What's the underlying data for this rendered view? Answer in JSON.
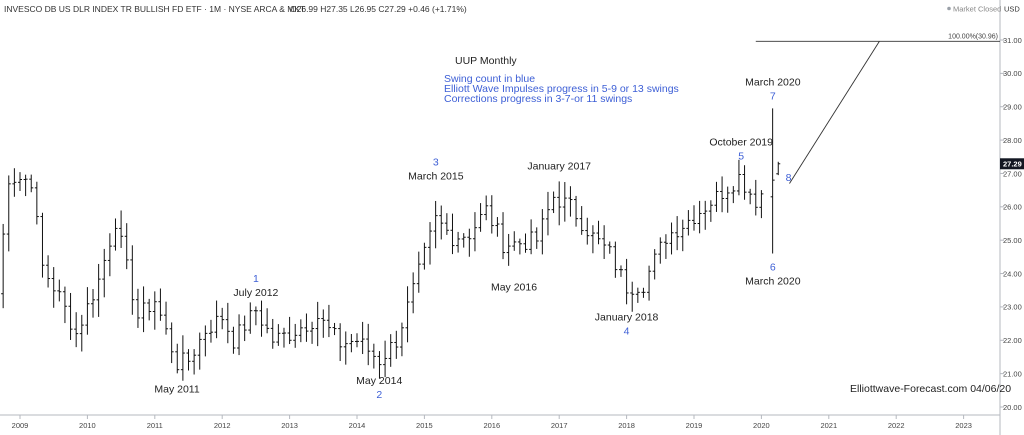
{
  "header": {
    "symbol_line": "INVESCO DB US DLR INDEX TR BULLISH FD ETF · 1M · NYSE ARCA & MKT",
    "ohlc": "O26.99 H27.35 L26.95 C27.29 +0.46 (+1.71%)",
    "market_status": "Market Closed",
    "currency": "USD"
  },
  "colors": {
    "bars": "#111111",
    "blue_text": "#3d5fd6",
    "price_tag": "#131722"
  },
  "notes": {
    "title": "UUP Monthly",
    "line1": "Swing count in blue",
    "line2": "Elliott Wave Impulses progress in 5-9 or 13 swings",
    "line3": "Corrections progress in 3-7-or 11 swings"
  },
  "annotations": [
    {
      "id": "may2011",
      "text": "May 2011",
      "color": "black",
      "date": 2011.33,
      "price": 20.95,
      "anchor": "below"
    },
    {
      "id": "july2012",
      "text": "July 2012",
      "color": "black",
      "date": 2012.5,
      "price": 23.05,
      "anchor": "above"
    },
    {
      "id": "wave1",
      "text": "1",
      "color": "blue",
      "date": 2012.5,
      "price": 23.05,
      "anchor": "above2"
    },
    {
      "id": "may2014",
      "text": "May 2014",
      "color": "black",
      "date": 2014.33,
      "price": 21.2,
      "anchor": "below"
    },
    {
      "id": "wave2",
      "text": "2",
      "color": "blue",
      "date": 2014.33,
      "price": 21.2,
      "anchor": "below2"
    },
    {
      "id": "march2015",
      "text": "March 2015",
      "color": "black",
      "date": 2015.17,
      "price": 26.55,
      "anchor": "above"
    },
    {
      "id": "wave3",
      "text": "3",
      "color": "blue",
      "date": 2015.17,
      "price": 26.55,
      "anchor": "above2"
    },
    {
      "id": "may2016",
      "text": "May 2016",
      "color": "black",
      "date": 2016.33,
      "price": 24.0,
      "anchor": "below"
    },
    {
      "id": "jan2017",
      "text": "January 2017",
      "color": "black",
      "date": 2017.0,
      "price": 26.85,
      "anchor": "above"
    },
    {
      "id": "jan2018",
      "text": "January 2018",
      "color": "black",
      "date": 2018.0,
      "price": 23.1,
      "anchor": "below"
    },
    {
      "id": "wave4",
      "text": "4",
      "color": "blue",
      "date": 2018.0,
      "price": 23.1,
      "anchor": "below2"
    },
    {
      "id": "oct2019",
      "text": "October 2019",
      "color": "black",
      "date": 2019.7,
      "price": 27.15,
      "anchor": "above"
    },
    {
      "id": "wave5",
      "text": "5",
      "color": "blue",
      "date": 2019.7,
      "price": 27.15,
      "anchor": "above_blue_gap"
    },
    {
      "id": "march2020top",
      "text": "March 2020",
      "color": "black",
      "date": 2020.17,
      "price": 28.95,
      "anchor": "above2"
    },
    {
      "id": "wave7",
      "text": "7",
      "color": "blue",
      "date": 2020.17,
      "price": 28.95,
      "anchor": "above"
    },
    {
      "id": "wave6",
      "text": "6",
      "color": "blue",
      "date": 2020.17,
      "price": 24.6,
      "anchor": "below"
    },
    {
      "id": "march2020bot",
      "text": "March 2020",
      "color": "black",
      "date": 2020.17,
      "price": 24.6,
      "anchor": "below2"
    },
    {
      "id": "wave8",
      "text": "8",
      "color": "blue",
      "date": 2020.33,
      "price": 26.9,
      "anchor": "right"
    }
  ],
  "fib_label": "100.00%(30.96)",
  "watermark": "Elliottwave-Forecast.com 04/06/20",
  "chart_data": {
    "type": "ohlc",
    "title": "UUP Monthly",
    "xlabel": "",
    "ylabel": "",
    "x_range": [
      2008.9,
      2023.4
    ],
    "ylim": [
      19.6,
      31.6
    ],
    "y_ticks": [
      "20.00",
      "21.00",
      "22.00",
      "23.00",
      "24.00",
      "25.00",
      "26.00",
      "27.00",
      "28.00",
      "29.00",
      "30.00",
      "31.00"
    ],
    "x_ticks": [
      "2009",
      "2010",
      "2011",
      "2012",
      "2013",
      "2014",
      "2015",
      "2016",
      "2017",
      "2018",
      "2019",
      "2020",
      "2021",
      "2022",
      "2023"
    ],
    "last_price": "27.29",
    "grid": false,
    "legend": "none",
    "anchors": [
      [
        "2008-09",
        23.4
      ],
      [
        "2008-11",
        26.9
      ],
      [
        "2009-03",
        26.8
      ],
      [
        "2009-05",
        24.2
      ],
      [
        "2009-08",
        23.3
      ],
      [
        "2009-11",
        22.2
      ],
      [
        "2010-03",
        23.8
      ],
      [
        "2010-06",
        25.6
      ],
      [
        "2010-10",
        22.7
      ],
      [
        "2011-01",
        23.2
      ],
      [
        "2011-05",
        21.3
      ],
      [
        "2011-07",
        21.4
      ],
      [
        "2011-10",
        22.3
      ],
      [
        "2012-01",
        22.7
      ],
      [
        "2012-03",
        22.0
      ],
      [
        "2012-07",
        22.9
      ],
      [
        "2012-10",
        22.0
      ],
      [
        "2013-01",
        22.2
      ],
      [
        "2013-06",
        22.7
      ],
      [
        "2013-10",
        21.9
      ],
      [
        "2014-01",
        22.0
      ],
      [
        "2014-05",
        21.4
      ],
      [
        "2014-08",
        22.0
      ],
      [
        "2014-11",
        23.5
      ],
      [
        "2015-03",
        25.6
      ],
      [
        "2015-06",
        25.1
      ],
      [
        "2015-09",
        25.2
      ],
      [
        "2015-12",
        25.9
      ],
      [
        "2016-03",
        24.9
      ],
      [
        "2016-05",
        24.9
      ],
      [
        "2016-09",
        25.0
      ],
      [
        "2016-12",
        26.3
      ],
      [
        "2017-03",
        26.0
      ],
      [
        "2017-07",
        25.1
      ],
      [
        "2017-10",
        24.6
      ],
      [
        "2018-01",
        23.6
      ],
      [
        "2018-04",
        23.7
      ],
      [
        "2018-08",
        25.1
      ],
      [
        "2018-12",
        25.6
      ],
      [
        "2019-05",
        26.3
      ],
      [
        "2019-09",
        26.9
      ],
      [
        "2019-12",
        26.2
      ],
      [
        "2020-03",
        26.8
      ]
    ],
    "bars": [
      {
        "date": "2020-03",
        "open": 26.3,
        "high": 28.95,
        "low": 24.6,
        "close": 26.8
      },
      {
        "date": "2020-04",
        "open": 26.99,
        "high": 27.35,
        "low": 26.95,
        "close": 27.29
      }
    ],
    "projection": {
      "from": [
        "2020-06",
        26.7
      ],
      "to": [
        "2021-10",
        30.96
      ]
    },
    "level": {
      "label": "100.00%(30.96)",
      "price": 30.96,
      "from": "2019-12"
    }
  }
}
